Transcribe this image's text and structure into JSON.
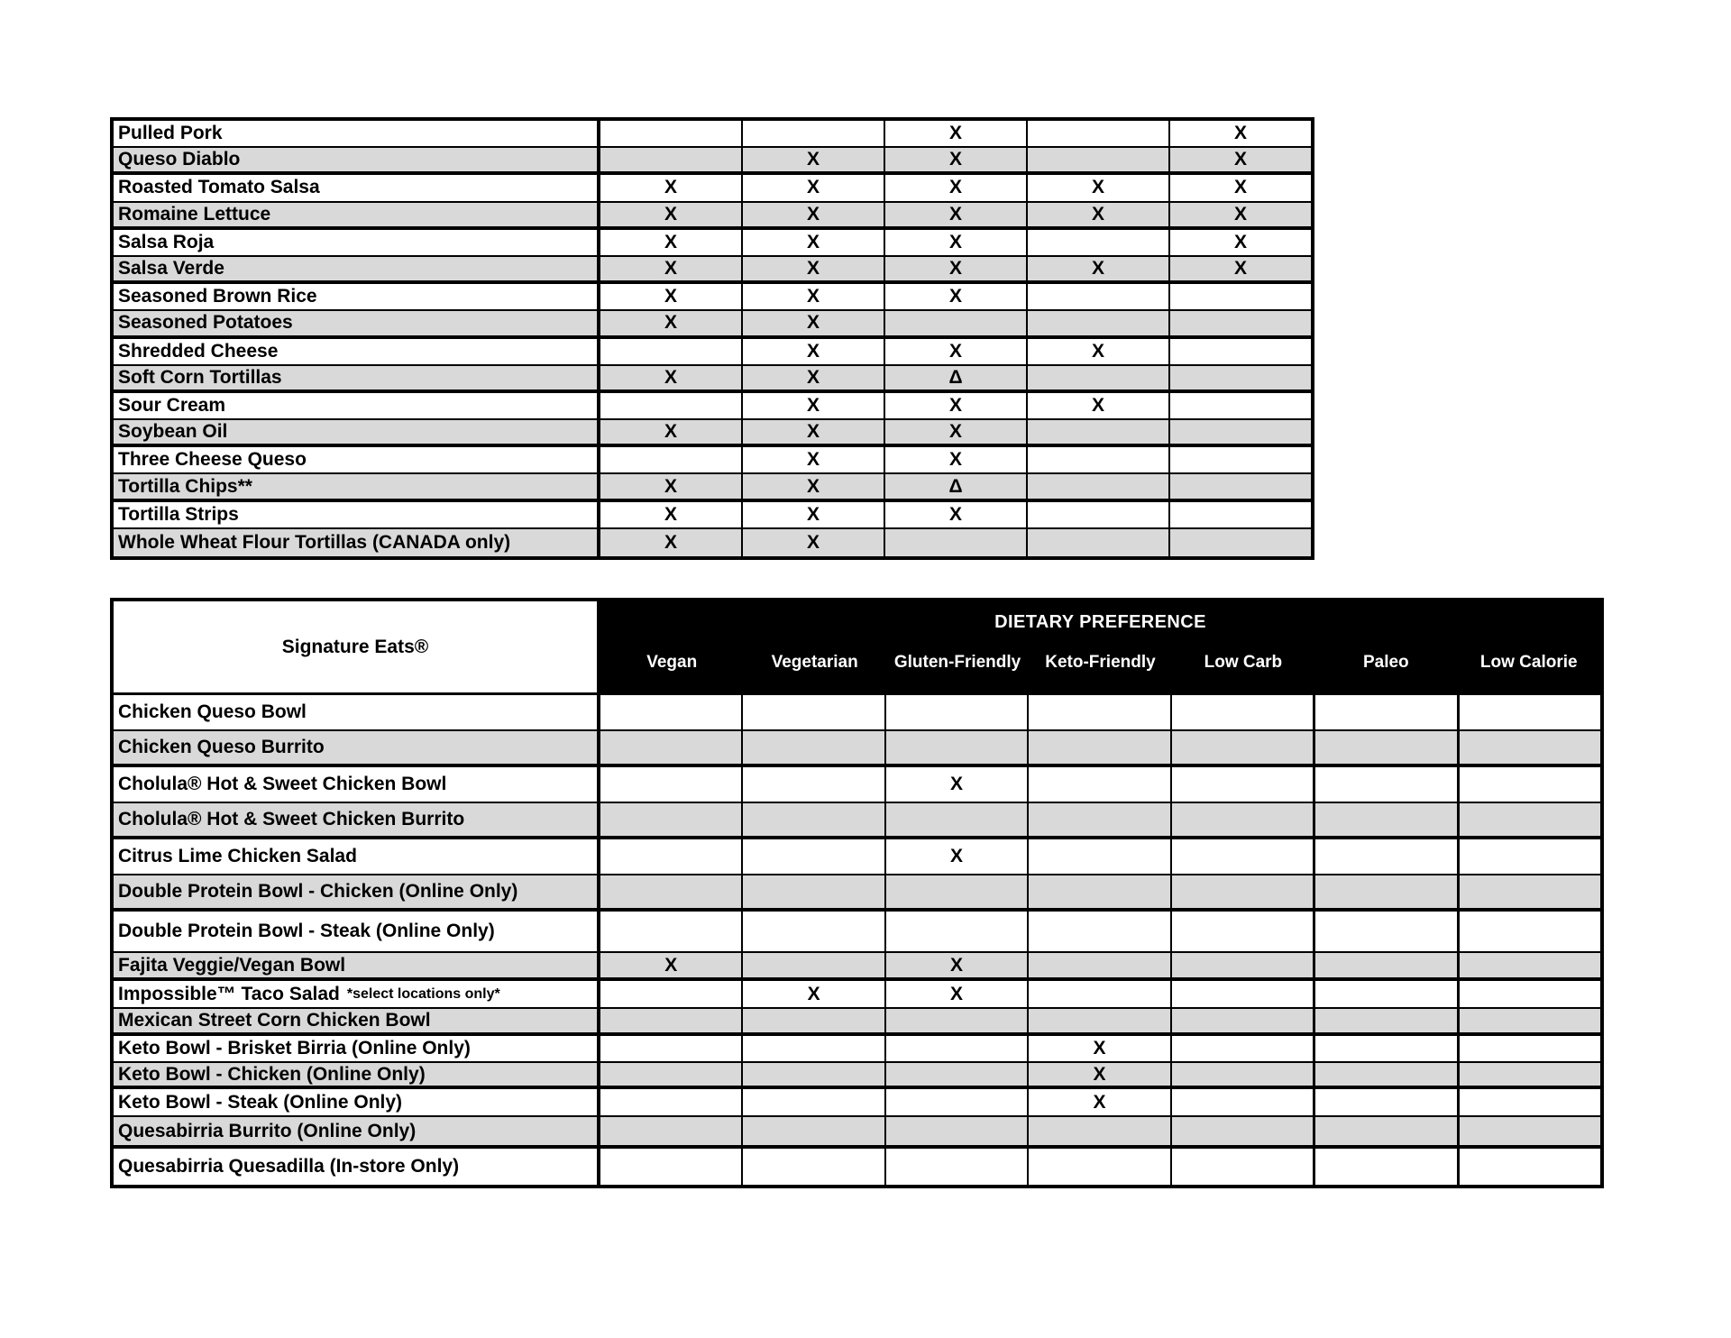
{
  "colors": {
    "row_stripe_gray": "#d9d9d9",
    "header_band_bg": "#000000",
    "header_band_fg": "#ffffff",
    "border_black": "#000000"
  },
  "marks": {
    "yes": "X",
    "delta": "Δ"
  },
  "top_table": {
    "rows": [
      {
        "label": "Pulled Pork",
        "marks": [
          "",
          "",
          "X",
          "",
          "X"
        ]
      },
      {
        "label": "Queso Diablo",
        "marks": [
          "",
          "X",
          "X",
          "",
          "X"
        ]
      },
      {
        "label": "Roasted Tomato Salsa",
        "marks": [
          "X",
          "X",
          "X",
          "X",
          "X"
        ]
      },
      {
        "label": "Romaine Lettuce",
        "marks": [
          "X",
          "X",
          "X",
          "X",
          "X"
        ]
      },
      {
        "label": "Salsa Roja",
        "marks": [
          "X",
          "X",
          "X",
          "",
          "X"
        ]
      },
      {
        "label": "Salsa Verde",
        "marks": [
          "X",
          "X",
          "X",
          "X",
          "X"
        ]
      },
      {
        "label": "Seasoned Brown Rice",
        "marks": [
          "X",
          "X",
          "X",
          "",
          ""
        ]
      },
      {
        "label": "Seasoned Potatoes",
        "marks": [
          "X",
          "X",
          "",
          "",
          ""
        ]
      },
      {
        "label": "Shredded Cheese",
        "marks": [
          "",
          "X",
          "X",
          "X",
          ""
        ]
      },
      {
        "label": "Soft Corn Tortillas",
        "marks": [
          "X",
          "X",
          "Δ",
          "",
          ""
        ]
      },
      {
        "label": "Sour Cream",
        "marks": [
          "",
          "X",
          "X",
          "X",
          ""
        ]
      },
      {
        "label": "Soybean Oil",
        "marks": [
          "X",
          "X",
          "X",
          "",
          ""
        ]
      },
      {
        "label": "Three Cheese Queso",
        "marks": [
          "",
          "X",
          "X",
          "",
          ""
        ]
      },
      {
        "label": "Tortilla Chips**",
        "marks": [
          "X",
          "X",
          "Δ",
          "",
          ""
        ]
      },
      {
        "label": "Tortilla Strips",
        "marks": [
          "X",
          "X",
          "X",
          "",
          ""
        ]
      },
      {
        "label": "Whole Wheat Flour Tortillas (CANADA only)",
        "marks": [
          "X",
          "X",
          "",
          "",
          ""
        ]
      }
    ]
  },
  "bottom_table": {
    "label_header": "Signature Eats®",
    "band_title": "DIETARY PREFERENCE",
    "columns": [
      "Vegan",
      "Vegetarian",
      "Gluten-Friendly",
      "Keto-Friendly",
      "Low Carb",
      "Paleo",
      "Low Calorie"
    ],
    "rows": [
      {
        "label": "Chicken Queso Bowl",
        "note": "",
        "marks": [
          "",
          "",
          "",
          "",
          "",
          "",
          ""
        ]
      },
      {
        "label": "Chicken Queso Burrito",
        "note": "",
        "marks": [
          "",
          "",
          "",
          "",
          "",
          "",
          ""
        ]
      },
      {
        "label": "Cholula® Hot & Sweet Chicken Bowl",
        "note": "",
        "marks": [
          "",
          "",
          "X",
          "",
          "",
          "",
          ""
        ]
      },
      {
        "label": "Cholula® Hot & Sweet Chicken Burrito",
        "note": "",
        "marks": [
          "",
          "",
          "",
          "",
          "",
          "",
          ""
        ]
      },
      {
        "label": "Citrus Lime Chicken Salad",
        "note": "",
        "marks": [
          "",
          "",
          "X",
          "",
          "",
          "",
          ""
        ]
      },
      {
        "label": "Double Protein Bowl - Chicken (Online Only)",
        "note": "",
        "marks": [
          "",
          "",
          "",
          "",
          "",
          "",
          ""
        ]
      },
      {
        "label": "Double Protein Bowl - Steak  (Online Only)",
        "note": "",
        "marks": [
          "",
          "",
          "",
          "",
          "",
          "",
          ""
        ]
      },
      {
        "label": "Fajita Veggie/Vegan Bowl",
        "note": "",
        "marks": [
          "X",
          "",
          "X",
          "",
          "",
          "",
          ""
        ]
      },
      {
        "label": "Impossible™ Taco Salad",
        "note": "*select locations only*",
        "marks": [
          "",
          "X",
          "X",
          "",
          "",
          "",
          ""
        ]
      },
      {
        "label": "Mexican Street Corn Chicken Bowl",
        "note": "",
        "marks": [
          "",
          "",
          "",
          "",
          "",
          "",
          ""
        ]
      },
      {
        "label": "Keto Bowl - Brisket Birria (Online Only)",
        "note": "",
        "marks": [
          "",
          "",
          "",
          "X",
          "",
          "",
          ""
        ]
      },
      {
        "label": "Keto Bowl - Chicken (Online Only)",
        "note": "",
        "marks": [
          "",
          "",
          "",
          "X",
          "",
          "",
          ""
        ]
      },
      {
        "label": "Keto Bowl - Steak (Online Only)",
        "note": "",
        "marks": [
          "",
          "",
          "",
          "X",
          "",
          "",
          ""
        ]
      },
      {
        "label": "Quesabirria Burrito (Online Only)",
        "note": "",
        "marks": [
          "",
          "",
          "",
          "",
          "",
          "",
          ""
        ]
      },
      {
        "label": "Quesabirria Quesadilla (In-store Only)",
        "note": "",
        "marks": [
          "",
          "",
          "",
          "",
          "",
          "",
          ""
        ]
      }
    ]
  }
}
